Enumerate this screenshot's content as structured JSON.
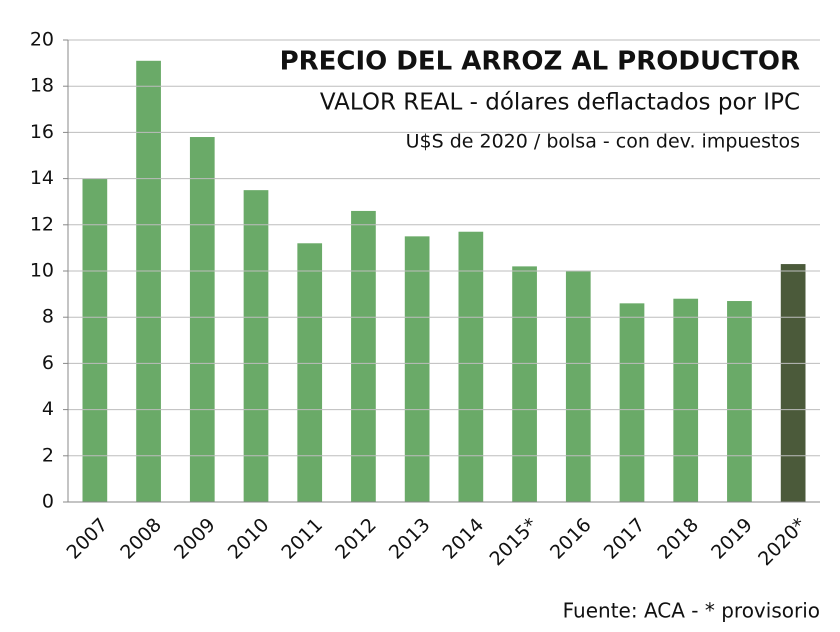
{
  "chart_data": {
    "type": "bar",
    "title": "PRECIO DEL ARROZ AL PRODUCTOR",
    "subtitle": "VALOR REAL - dólares deflactados por IPC",
    "subtitle2": "U$S de 2020 / bolsa - con dev.  impuestos",
    "source": "Fuente: ACA - * provisorio",
    "categories": [
      "2007",
      "2008",
      "2009",
      "2010",
      "2011",
      "2012",
      "2013",
      "2014",
      "2015*",
      "2016",
      "2017",
      "2018",
      "2019",
      "2020*"
    ],
    "values": [
      14.0,
      19.1,
      15.8,
      13.5,
      11.2,
      12.6,
      11.5,
      11.7,
      10.2,
      10.0,
      8.6,
      8.8,
      8.7,
      10.3
    ],
    "colors": [
      "#6aaa68",
      "#6aaa68",
      "#6aaa68",
      "#6aaa68",
      "#6aaa68",
      "#6aaa68",
      "#6aaa68",
      "#6aaa68",
      "#6aaa68",
      "#6aaa68",
      "#6aaa68",
      "#6aaa68",
      "#6aaa68",
      "#4b5a3a"
    ],
    "ylim": [
      0,
      20
    ],
    "yticks": [
      0,
      2,
      4,
      6,
      8,
      10,
      12,
      14,
      16,
      18,
      20
    ],
    "grid": true
  }
}
